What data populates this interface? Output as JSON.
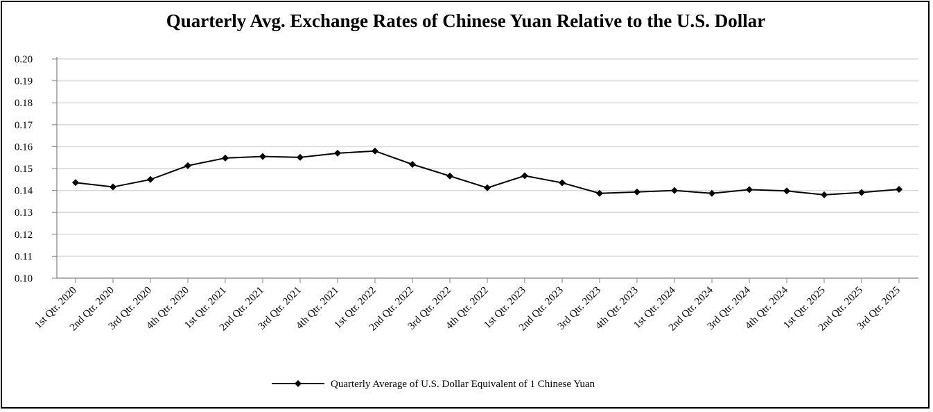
{
  "chart_data": {
    "type": "line",
    "title": "Quarterly Avg. Exchange Rates of Chinese Yuan Relative to the U.S. Dollar",
    "xlabel": "",
    "ylabel": "",
    "ylim": [
      0.1,
      0.2
    ],
    "yticks": [
      "0.10",
      "0.11",
      "0.12",
      "0.13",
      "0.14",
      "0.15",
      "0.16",
      "0.17",
      "0.18",
      "0.19",
      "0.20"
    ],
    "grid": true,
    "legend_position": "bottom",
    "categories": [
      "1st Qtr. 2020",
      "2nd Qtr. 2020",
      "3rd Qtr. 2020",
      "4th Qtr. 2020",
      "1st Qtr. 2021",
      "2nd Qtr. 2021",
      "3rd Qtr. 2021",
      "4th Qtr. 2021",
      "1st Qtr. 2022",
      "2nd Qtr. 2022",
      "3rd Qtr. 2022",
      "4th Qtr. 2022",
      "1st Qtr. 2023",
      "2nd Qtr. 2023",
      "3rd Qtr. 2023",
      "4th Qtr. 2023",
      "1st Qtr. 2024",
      "2nd Qtr. 2024",
      "3rd Qtr. 2024",
      "4th Qtr. 2024",
      "1st Qtr. 2025",
      "2nd Qtr. 2025",
      "3rd Qtr. 2025"
    ],
    "series": [
      {
        "name": "Quarterly Average of U.S. Dollar Equivalent of 1 Chinese Yuan",
        "color": "#000000",
        "marker": "diamond",
        "values": [
          0.1436,
          0.1416,
          0.145,
          0.1513,
          0.1548,
          0.1555,
          0.1551,
          0.157,
          0.158,
          0.1519,
          0.1466,
          0.1412,
          0.1467,
          0.1435,
          0.1387,
          0.1393,
          0.14,
          0.1387,
          0.1404,
          0.1398,
          0.138,
          0.1391,
          0.1405
        ]
      }
    ]
  }
}
